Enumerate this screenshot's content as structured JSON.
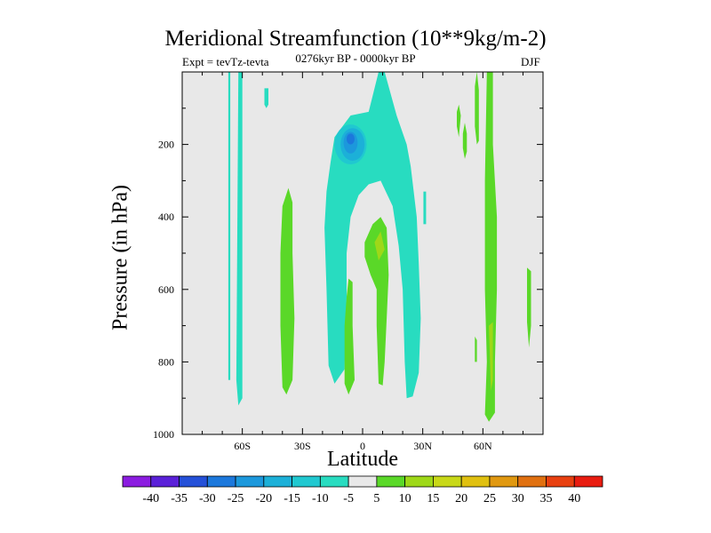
{
  "chart_data": {
    "type": "heatmap",
    "title": "Meridional Streamfunction (10**9kg/m-2)",
    "subtitle_left": "Expt = tevTz-tevta",
    "subtitle_center": "0276kyr BP - 0000kyr BP",
    "subtitle_right": "DJF",
    "xlabel": "Latitude",
    "ylabel": "Pressure (in hPa)",
    "xlim": [
      -90,
      90
    ],
    "ylim": [
      0,
      1000
    ],
    "x_ticks": [
      {
        "value": -60,
        "label": "60S"
      },
      {
        "value": -30,
        "label": "30S"
      },
      {
        "value": 0,
        "label": "0"
      },
      {
        "value": 30,
        "label": "30N"
      },
      {
        "value": 60,
        "label": "60N"
      }
    ],
    "y_ticks": [
      {
        "value": 200,
        "label": "200"
      },
      {
        "value": 400,
        "label": "400"
      },
      {
        "value": 600,
        "label": "600"
      },
      {
        "value": 800,
        "label": "800"
      },
      {
        "value": 1000,
        "label": "1000"
      }
    ],
    "levels": [
      -40,
      -35,
      -30,
      -25,
      -20,
      -15,
      -10,
      -5,
      5,
      10,
      15,
      20,
      25,
      30,
      35,
      40
    ],
    "colorbar_colors": [
      "#8B1CE0",
      "#5A20D8",
      "#2450D8",
      "#1C78DC",
      "#1C98DC",
      "#1CB0D8",
      "#20C8D0",
      "#28DCC0",
      "#E8E8E8",
      "#5AD828",
      "#9ED818",
      "#C8D818",
      "#E0C010",
      "#E09810",
      "#E07010",
      "#E84010",
      "#E81C10"
    ],
    "regions": [
      {
        "value": -7,
        "points": [
          [
            -67,
            0
          ],
          [
            -66,
            0
          ],
          [
            -66,
            850
          ],
          [
            -67,
            850
          ]
        ]
      },
      {
        "value": -7,
        "points": [
          [
            -62,
            0
          ],
          [
            -60,
            0
          ],
          [
            -60,
            900
          ],
          [
            -62,
            920
          ],
          [
            -63,
            850
          ]
        ]
      },
      {
        "value": -7,
        "points": [
          [
            -49,
            45
          ],
          [
            -47,
            45
          ],
          [
            -47,
            90
          ],
          [
            -48,
            100
          ],
          [
            -49,
            90
          ]
        ]
      },
      {
        "value": -7,
        "points": [
          [
            -14,
            180
          ],
          [
            -10,
            150
          ],
          [
            -6,
            120
          ],
          [
            3,
            110
          ],
          [
            8,
            0
          ],
          [
            11,
            0
          ],
          [
            17,
            120
          ],
          [
            22,
            200
          ],
          [
            24,
            260
          ],
          [
            27,
            400
          ],
          [
            28,
            530
          ],
          [
            29,
            680
          ],
          [
            28,
            830
          ],
          [
            25,
            895
          ],
          [
            22,
            900
          ],
          [
            21,
            800
          ],
          [
            20,
            600
          ],
          [
            18,
            480
          ],
          [
            15,
            370
          ],
          [
            9,
            300
          ],
          [
            3,
            310
          ],
          [
            -2,
            340
          ],
          [
            -6,
            400
          ],
          [
            -8,
            500
          ],
          [
            -8,
            620
          ],
          [
            -9,
            820
          ],
          [
            -14,
            860
          ],
          [
            -17,
            810
          ],
          [
            -18,
            600
          ],
          [
            -19,
            430
          ],
          [
            -18,
            330
          ],
          [
            -16,
            250
          ]
        ]
      },
      {
        "value": -7,
        "points": [
          [
            -13,
            215
          ],
          [
            -10,
            190
          ],
          [
            -6,
            180
          ],
          [
            -2,
            190
          ],
          [
            -1,
            210
          ],
          [
            -3,
            230
          ],
          [
            -8,
            250
          ],
          [
            -12,
            240
          ]
        ]
      },
      {
        "value": 7,
        "points": [
          [
            -40,
            370
          ],
          [
            -37,
            320
          ],
          [
            -35,
            360
          ],
          [
            -35,
            500
          ],
          [
            -34,
            680
          ],
          [
            -35,
            850
          ],
          [
            -38,
            890
          ],
          [
            -40,
            870
          ],
          [
            -41,
            700
          ],
          [
            -41,
            500
          ]
        ]
      },
      {
        "value": 7,
        "points": [
          [
            -7,
            570
          ],
          [
            -5,
            580
          ],
          [
            -5,
            700
          ],
          [
            -4,
            850
          ],
          [
            -7,
            890
          ],
          [
            -9,
            860
          ],
          [
            -9,
            700
          ],
          [
            -8,
            620
          ]
        ]
      },
      {
        "value": 7,
        "points": [
          [
            1,
            470
          ],
          [
            5,
            420
          ],
          [
            9,
            400
          ],
          [
            12,
            430
          ],
          [
            13,
            560
          ],
          [
            12,
            680
          ],
          [
            11,
            800
          ],
          [
            10,
            865
          ],
          [
            8,
            860
          ],
          [
            7,
            700
          ],
          [
            7,
            600
          ],
          [
            4,
            560
          ],
          [
            1,
            510
          ]
        ]
      },
      {
        "value": 12,
        "points": [
          [
            6,
            470
          ],
          [
            9,
            440
          ],
          [
            11,
            490
          ],
          [
            8,
            520
          ]
        ]
      },
      {
        "value": 7,
        "points": [
          [
            47,
            110
          ],
          [
            48,
            90
          ],
          [
            49,
            120
          ],
          [
            48,
            180
          ],
          [
            47,
            150
          ]
        ]
      },
      {
        "value": 7,
        "points": [
          [
            50,
            170
          ],
          [
            51,
            140
          ],
          [
            52,
            170
          ],
          [
            52,
            220
          ],
          [
            51,
            240
          ],
          [
            50,
            210
          ]
        ]
      },
      {
        "value": 7,
        "points": [
          [
            56,
            40
          ],
          [
            57,
            0
          ],
          [
            58,
            50
          ],
          [
            58,
            190
          ],
          [
            57,
            200
          ],
          [
            56,
            150
          ]
        ]
      },
      {
        "value": 7,
        "points": [
          [
            62,
            0
          ],
          [
            65,
            0
          ],
          [
            65,
            200
          ],
          [
            67,
            400
          ],
          [
            67,
            600
          ],
          [
            66,
            800
          ],
          [
            66,
            940
          ],
          [
            63,
            965
          ],
          [
            61,
            945
          ],
          [
            62,
            800
          ],
          [
            61,
            600
          ],
          [
            61,
            300
          ]
        ]
      },
      {
        "value": 12,
        "points": [
          [
            63,
            700
          ],
          [
            65,
            690
          ],
          [
            65,
            850
          ],
          [
            64,
            880
          ]
        ]
      },
      {
        "value": 7,
        "points": [
          [
            82,
            540
          ],
          [
            84,
            550
          ],
          [
            84,
            700
          ],
          [
            83,
            760
          ],
          [
            82,
            690
          ]
        ]
      },
      {
        "value": 7,
        "points": [
          [
            56,
            730
          ],
          [
            57,
            740
          ],
          [
            57,
            800
          ],
          [
            56,
            800
          ]
        ]
      }
    ],
    "cores": [
      {
        "value": -12,
        "cx": -6,
        "cy": 200,
        "rx": 8,
        "ry": 55
      },
      {
        "value": -17,
        "cx": -5,
        "cy": 200,
        "rx": 6,
        "ry": 45
      },
      {
        "value": -22,
        "cx": -6,
        "cy": 195,
        "rx": 3.5,
        "ry": 30
      },
      {
        "value": -27,
        "cx": -6,
        "cy": 185,
        "rx": 2,
        "ry": 15
      }
    ],
    "line_features": [
      {
        "value": -7,
        "points": [
          [
            31,
            330
          ],
          [
            31,
            420
          ]
        ]
      }
    ]
  }
}
